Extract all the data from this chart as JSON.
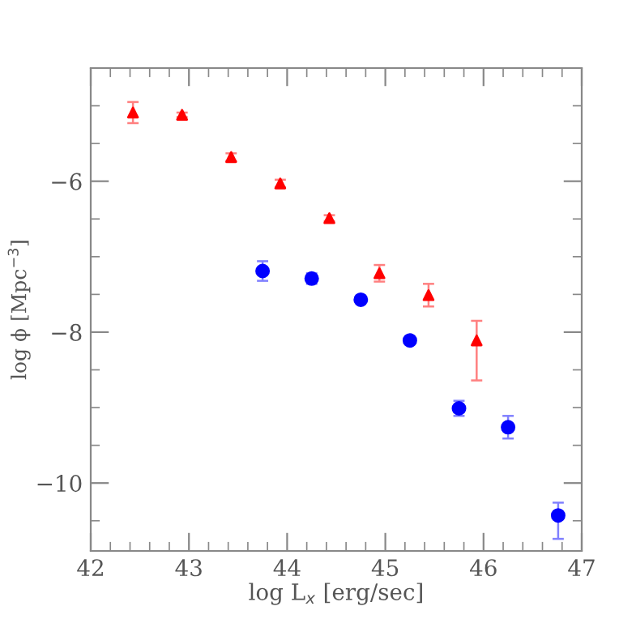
{
  "chart_data": {
    "type": "scatter",
    "xlabel": "log L$_{x}$ [erg/sec]",
    "ylabel": "log ϕ [Mpc$^{−3}$]",
    "xlim": [
      42,
      47
    ],
    "ylim": [
      -10.9,
      -4.5
    ],
    "xticks": [
      42,
      43,
      44,
      45,
      46,
      47
    ],
    "yticks": [
      -10,
      -8,
      -6
    ],
    "grid": false,
    "series": [
      {
        "color": "#ff0000",
        "marker": "triangle",
        "x": [
          42.43,
          42.93,
          43.43,
          43.93,
          44.43,
          44.94,
          45.44,
          45.93
        ],
        "values": [
          -5.09,
          -5.12,
          -5.68,
          -6.03,
          -6.49,
          -7.22,
          -7.51,
          -8.11
        ],
        "errors": [
          0.14,
          0.03,
          0.05,
          0.05,
          0.04,
          0.11,
          0.15,
          [
            -8.64,
            -7.85
          ]
        ]
      },
      {
        "color": "#0000ff",
        "marker": "circle",
        "x": [
          43.75,
          44.25,
          44.75,
          45.25,
          45.75,
          46.25,
          46.76
        ],
        "values": [
          -7.19,
          -7.29,
          -7.57,
          -8.11,
          -9.01,
          -9.26,
          -10.43
        ],
        "errors": [
          0.13,
          0.07,
          0.03,
          0.03,
          0.1,
          0.15,
          [
            -10.74,
            -10.26
          ]
        ]
      }
    ]
  }
}
